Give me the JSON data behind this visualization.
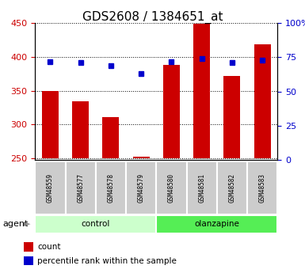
{
  "title": "GDS2608 / 1384651_at",
  "samples": [
    "GSM48559",
    "GSM48577",
    "GSM48578",
    "GSM48579",
    "GSM48580",
    "GSM48581",
    "GSM48582",
    "GSM48583"
  ],
  "groups": [
    "control",
    "control",
    "control",
    "control",
    "olanzapine",
    "olanzapine",
    "olanzapine",
    "olanzapine"
  ],
  "counts": [
    350,
    335,
    311,
    253,
    388,
    449,
    372,
    419
  ],
  "percentile_ranks": [
    72,
    71,
    69,
    63,
    72,
    74,
    71,
    73
  ],
  "ylim_left": [
    248,
    450
  ],
  "ylim_right": [
    0,
    100
  ],
  "yticks_left": [
    250,
    300,
    350,
    400,
    450
  ],
  "yticks_right": [
    0,
    25,
    50,
    75,
    100
  ],
  "bar_color": "#cc0000",
  "dot_color": "#0000cc",
  "bar_bottom": 250,
  "control_color": "#ccffcc",
  "olanzapine_color": "#55ee55",
  "legend_count_label": "count",
  "legend_pct_label": "percentile rank within the sample",
  "title_fontsize": 11,
  "tick_fontsize": 8,
  "right_tick_color": "#0000cc",
  "left_tick_color": "#cc0000",
  "sample_box_color": "#cccccc",
  "sample_font_size": 5.5,
  "bar_width": 0.55
}
